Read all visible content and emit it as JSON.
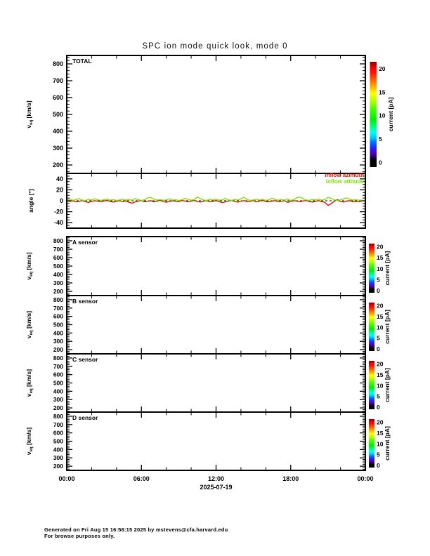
{
  "title": "SPC ion mode quick look, mode 0",
  "footer": {
    "line1": "Generated on Fri Aug 15 16:58:15 2025 by mstevens@cfa.harvard.edu",
    "line2": "For browse purposes only."
  },
  "xaxis": {
    "tick_labels": [
      "00:00",
      "06:00",
      "12:00",
      "18:00",
      "00:00"
    ],
    "date_label": "2025-07-19",
    "span_hours": 24,
    "major_step_hours": 6,
    "minor_step_hours": 2
  },
  "legend": [
    {
      "label": "inflow azimuth",
      "color": "#ee1100"
    },
    {
      "label": "inflow attitude",
      "color": "#77e600"
    }
  ],
  "colorbar": {
    "label": "current [pA]",
    "ticks": [
      0,
      5,
      10,
      15,
      20
    ],
    "value_range": [
      0,
      20
    ],
    "bar_value_range": [
      -1,
      21.5
    ],
    "gradient": [
      [
        0.0,
        "#000000"
      ],
      [
        0.07,
        "#000000"
      ],
      [
        0.1,
        "#30006a"
      ],
      [
        0.14,
        "#5500c8"
      ],
      [
        0.18,
        "#2222ff"
      ],
      [
        0.24,
        "#0077ff"
      ],
      [
        0.28,
        "#00ccff"
      ],
      [
        0.33,
        "#00ffee"
      ],
      [
        0.38,
        "#00ff88"
      ],
      [
        0.45,
        "#00ee00"
      ],
      [
        0.55,
        "#44ff00"
      ],
      [
        0.62,
        "#aaff00"
      ],
      [
        0.7,
        "#ffff00"
      ],
      [
        0.78,
        "#ff9900"
      ],
      [
        0.84,
        "#ff5500"
      ],
      [
        0.9,
        "#ff1100"
      ],
      [
        0.955,
        "#ee0000"
      ],
      [
        0.965,
        "#bb0000"
      ],
      [
        1.0,
        "#990000"
      ]
    ]
  },
  "panels": [
    {
      "key": "total",
      "label": "TOTAL",
      "ylabel": {
        "pre": "v",
        "sub": "eq",
        "post": " [km/s]"
      },
      "yticks": [
        200,
        300,
        400,
        500,
        600,
        700,
        800
      ],
      "yminor_step": 20,
      "yrange": [
        150,
        850
      ],
      "colorbar": true,
      "zero_line": false,
      "series": false,
      "tick_font": 9
    },
    {
      "key": "angle",
      "label": "",
      "ylabel": {
        "pre": "angle [°]",
        "sub": "",
        "post": ""
      },
      "yticks": [
        -40,
        -20,
        0,
        20,
        40
      ],
      "yminor_step": 5,
      "yrange": [
        -50,
        50
      ],
      "colorbar": false,
      "zero_line": true,
      "series": true,
      "tick_font": 9
    },
    {
      "key": "a",
      "label": "A sensor",
      "ylabel": {
        "pre": "v",
        "sub": "eq",
        "post": " [km/s]"
      },
      "yticks": [
        200,
        300,
        400,
        500,
        600,
        700,
        800
      ],
      "yminor_step": 20,
      "yrange": [
        150,
        850
      ],
      "colorbar": true,
      "zero_line": false,
      "series": false,
      "tick_font": 8.5
    },
    {
      "key": "b",
      "label": "B sensor",
      "ylabel": {
        "pre": "v",
        "sub": "eq",
        "post": " [km/s]"
      },
      "yticks": [
        200,
        300,
        400,
        500,
        600,
        700,
        800
      ],
      "yminor_step": 20,
      "yrange": [
        150,
        850
      ],
      "colorbar": true,
      "zero_line": false,
      "series": false,
      "tick_font": 8.5
    },
    {
      "key": "c",
      "label": "C sensor",
      "ylabel": {
        "pre": "v",
        "sub": "eq",
        "post": " [km/s]"
      },
      "yticks": [
        200,
        300,
        400,
        500,
        600,
        700,
        800
      ],
      "yminor_step": 20,
      "yrange": [
        150,
        850
      ],
      "colorbar": true,
      "zero_line": false,
      "series": false,
      "tick_font": 8.5
    },
    {
      "key": "d",
      "label": "D sensor",
      "ylabel": {
        "pre": "v",
        "sub": "eq",
        "post": " [km/s]"
      },
      "yticks": [
        200,
        300,
        400,
        500,
        600,
        700,
        800
      ],
      "yminor_step": 20,
      "yrange": [
        150,
        850
      ],
      "colorbar": true,
      "zero_line": false,
      "series": false,
      "tick_font": 8.5
    }
  ],
  "chart_data": {
    "type": "line",
    "title": "SPC ion mode quick look, mode 0",
    "xlabel": "2025-07-19",
    "ylabel": "angle [°]",
    "x_range_hours": [
      0,
      24
    ],
    "y_range": [
      -50,
      50
    ],
    "x_start_hours": 0,
    "x_step_hours": 0.25,
    "grid": false,
    "legend_position": "top-right",
    "empty_panels": [
      "TOTAL",
      "A sensor",
      "B sensor",
      "C sensor",
      "D sensor"
    ],
    "series": [
      {
        "name": "inflow azimuth",
        "color": "#ee1100",
        "values": [
          -0.6,
          -1.4,
          0.2,
          -2.0,
          -0.9,
          0.4,
          -1.6,
          -3.1,
          -1.2,
          0.1,
          -0.7,
          -1.9,
          -0.4,
          0.6,
          -1.2,
          -2.5,
          -0.8,
          0.3,
          -1.4,
          -0.3,
          -2.7,
          -4.3,
          -2.1,
          -0.6,
          0.5,
          -1.5,
          -0.9,
          0.2,
          -2.0,
          -0.5,
          0.6,
          -1.3,
          -2.7,
          -1.1,
          0.1,
          -0.9,
          -1.6,
          0.4,
          -0.4,
          -1.8,
          -0.7,
          0.8,
          -1.2,
          -2.3,
          -0.5,
          0.2,
          -1.7,
          -1.0,
          0.5,
          -1.4,
          -3.5,
          -1.9,
          -0.3,
          0.6,
          -1.1,
          -2.6,
          -0.7,
          0.3,
          -1.5,
          -0.9,
          0.4,
          -2.0,
          -0.4,
          0.7,
          -1.3,
          -2.1,
          -0.6,
          0.2,
          -1.6,
          -1.0,
          0.5,
          -2.9,
          -1.3,
          0.3,
          -0.8,
          -1.7,
          -0.3,
          0.4,
          -1.2,
          -2.4,
          -0.9,
          0.2,
          -1.5,
          -2.8,
          -8.5,
          -5.2,
          -1.0,
          2.4,
          -1.1,
          -2.3,
          -0.7,
          0.3,
          -1.9,
          -1.0,
          -1.6,
          -0.5
        ]
      },
      {
        "name": "inflow attitude",
        "color": "#77e600",
        "values": [
          1.7,
          3.1,
          0.8,
          2.4,
          4.0,
          1.1,
          0.4,
          2.7,
          1.4,
          3.5,
          1.9,
          0.7,
          1.8,
          3.3,
          1.0,
          2.1,
          0.5,
          1.6,
          2.9,
          1.3,
          2.5,
          0.9,
          4.1,
          2.2,
          0.6,
          1.7,
          5.4,
          6.1,
          3.0,
          1.1,
          2.3,
          0.8,
          1.5,
          3.7,
          1.2,
          2.0,
          0.4,
          1.8,
          4.5,
          2.6,
          1.0,
          2.2,
          6.7,
          3.9,
          1.4,
          0.7,
          2.8,
          1.5,
          3.2,
          0.9,
          1.9,
          4.3,
          1.7,
          0.5,
          2.4,
          1.1,
          3.6,
          6.4,
          2.1,
          0.8,
          1.6,
          3.0,
          1.3,
          2.7,
          0.6,
          1.8,
          4.7,
          2.3,
          0.9,
          2.5,
          1.2,
          3.4,
          0.7,
          2.0,
          5.7,
          6.9,
          3.8,
          1.4,
          0.8,
          2.6,
          1.5,
          3.1,
          1.0,
          2.3,
          6.3,
          4.4,
          1.9,
          0.6,
          1.7,
          3.5,
          5.1,
          2.8,
          1.1,
          2.1,
          0.9,
          1.4
        ]
      }
    ]
  }
}
